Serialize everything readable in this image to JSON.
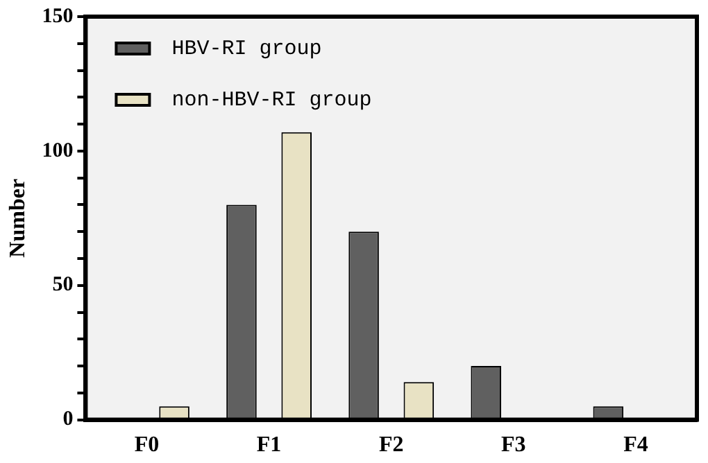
{
  "chart_data": {
    "type": "bar",
    "ylabel": "Number",
    "categories": [
      "F0",
      "F1",
      "F2",
      "F3",
      "F4"
    ],
    "series": [
      {
        "name": "HBV-RI group",
        "color": "#606060",
        "values": [
          0,
          80,
          70,
          20,
          5
        ]
      },
      {
        "name": "non-HBV-RI group",
        "color": "#e8e2c4",
        "values": [
          5,
          107,
          14,
          0,
          0
        ]
      }
    ],
    "ylim": [
      0,
      150
    ],
    "yticks": [
      0,
      {
        "value": 10,
        "label": null
      },
      {
        "value": 20,
        "label": null
      },
      {
        "value": 30,
        "label": null
      },
      {
        "value": 40,
        "label": null
      },
      50,
      {
        "value": 60,
        "label": null
      },
      {
        "value": 70,
        "label": null
      },
      {
        "value": 80,
        "label": null
      },
      {
        "value": 90,
        "label": null
      },
      100,
      {
        "value": 110,
        "label": null
      },
      {
        "value": 120,
        "label": null
      },
      {
        "value": 130,
        "label": null
      },
      {
        "value": 140,
        "label": null
      },
      150
    ],
    "grid": false,
    "legend": "top left"
  }
}
